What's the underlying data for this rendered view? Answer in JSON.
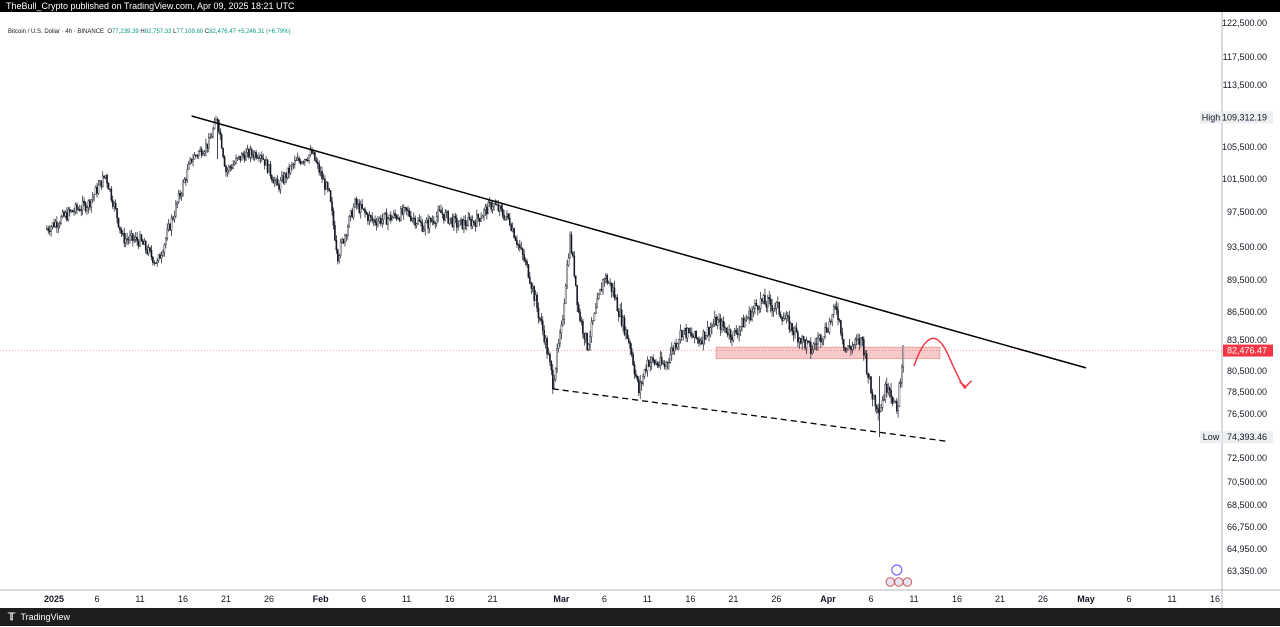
{
  "header": {
    "publisher_line": "TheBull_Crypto published on TradingView.com, Apr 09, 2025 18:21 UTC"
  },
  "legend": {
    "symbol": "Bitcoin / U.S. Dollar · 4h · BINANCE",
    "open_label": "O",
    "open": "77,239.39",
    "high_label": "H",
    "high": "82,757.33",
    "low_label": "L",
    "low": "77,109.60",
    "close_label": "C",
    "close": "82,476.47",
    "change": "+5,246.31 (+6.79%)"
  },
  "footer": {
    "brand": "TradingView"
  },
  "chart_data": {
    "type": "candlestick",
    "symbol": "Bitcoin / U.S. Dollar",
    "interval": "4h",
    "exchange": "BINANCE",
    "y_ticks": [
      122500,
      117500,
      113500,
      105500,
      101500,
      97500,
      93500,
      89500,
      86500,
      83500,
      80500,
      78500,
      76500,
      72500,
      70500,
      68500,
      66750,
      64950,
      63350
    ],
    "y_tick_labels": [
      "122,500.00",
      "117,500.00",
      "113,500.00",
      "105,500.00",
      "101,500.00",
      "97,500.00",
      "93,500.00",
      "89,500.00",
      "86,500.00",
      "83,500.00",
      "80,500.00",
      "78,500.00",
      "76,500.00",
      "72,500.00",
      "70,500.00",
      "68,500.00",
      "66,750.00",
      "64,950.00",
      "63,350.00"
    ],
    "x_tick_labels": [
      "2025",
      "6",
      "11",
      "16",
      "21",
      "26",
      "Feb",
      "6",
      "11",
      "16",
      "21",
      "Mar",
      "6",
      "11",
      "16",
      "21",
      "26",
      "Apr",
      "6",
      "11",
      "16",
      "21",
      "26",
      "May",
      "6",
      "11",
      "16"
    ],
    "x_tick_dates": [
      "2025-01-01",
      "2025-01-06",
      "2025-01-11",
      "2025-01-16",
      "2025-01-21",
      "2025-01-26",
      "2025-02-01",
      "2025-02-06",
      "2025-02-11",
      "2025-02-16",
      "2025-02-21",
      "2025-03-01",
      "2025-03-06",
      "2025-03-11",
      "2025-03-16",
      "2025-03-21",
      "2025-03-26",
      "2025-04-01",
      "2025-04-06",
      "2025-04-11",
      "2025-04-16",
      "2025-04-21",
      "2025-04-26",
      "2025-05-01",
      "2025-05-06",
      "2025-05-11",
      "2025-05-16"
    ],
    "bold_x_labels": [
      "2025",
      "Feb",
      "Mar",
      "Apr",
      "May"
    ],
    "price_path": [
      [
        "2024-12-31",
        95500
      ],
      [
        "2025-01-03",
        97500
      ],
      [
        "2025-01-05",
        98500
      ],
      [
        "2025-01-07",
        102000
      ],
      [
        "2025-01-09",
        94500
      ],
      [
        "2025-01-11",
        94200
      ],
      [
        "2025-01-13",
        91500
      ],
      [
        "2025-01-15",
        97500
      ],
      [
        "2025-01-17",
        104000
      ],
      [
        "2025-01-19",
        106000
      ],
      [
        "2025-01-20",
        109312
      ],
      [
        "2025-01-21",
        102500
      ],
      [
        "2025-01-23",
        104500
      ],
      [
        "2025-01-25",
        104800
      ],
      [
        "2025-01-27",
        100500
      ],
      [
        "2025-01-29",
        103500
      ],
      [
        "2025-01-31",
        104700
      ],
      [
        "2025-02-02",
        99500
      ],
      [
        "2025-02-03",
        92500
      ],
      [
        "2025-02-05",
        98500
      ],
      [
        "2025-02-07",
        96500
      ],
      [
        "2025-02-09",
        96800
      ],
      [
        "2025-02-11",
        97500
      ],
      [
        "2025-02-13",
        95800
      ],
      [
        "2025-02-15",
        97400
      ],
      [
        "2025-02-17",
        96000
      ],
      [
        "2025-02-19",
        96500
      ],
      [
        "2025-02-21",
        98500
      ],
      [
        "2025-02-23",
        96500
      ],
      [
        "2025-02-25",
        91000
      ],
      [
        "2025-02-27",
        84000
      ],
      [
        "2025-02-28",
        79500
      ],
      [
        "2025-03-01",
        84500
      ],
      [
        "2025-03-02",
        94500
      ],
      [
        "2025-03-03",
        86500
      ],
      [
        "2025-03-04",
        83000
      ],
      [
        "2025-03-06",
        90000
      ],
      [
        "2025-03-07",
        88500
      ],
      [
        "2025-03-09",
        83000
      ],
      [
        "2025-03-10",
        78500
      ],
      [
        "2025-03-11",
        81500
      ],
      [
        "2025-03-13",
        81000
      ],
      [
        "2025-03-15",
        84500
      ],
      [
        "2025-03-17",
        83500
      ],
      [
        "2025-03-19",
        85500
      ],
      [
        "2025-03-21",
        84000
      ],
      [
        "2025-03-24",
        87500
      ],
      [
        "2025-03-26",
        87000
      ],
      [
        "2025-03-28",
        84500
      ],
      [
        "2025-03-30",
        82500
      ],
      [
        "2025-04-01",
        85000
      ],
      [
        "2025-04-02",
        87000
      ],
      [
        "2025-04-03",
        82500
      ],
      [
        "2025-04-05",
        83500
      ],
      [
        "2025-04-06",
        78500
      ],
      [
        "2025-04-07",
        77000
      ],
      [
        "2025-04-08",
        79500
      ],
      [
        "2025-04-09",
        76500
      ],
      [
        "2025-04-09T18:00",
        82476
      ]
    ],
    "high": {
      "label": "High",
      "value": 109312.19,
      "value_label": "109,312.19"
    },
    "low": {
      "label": "Low",
      "value": 74393.46,
      "value_label": "74,393.46"
    },
    "last_price": {
      "value": 82476.47,
      "value_label": "82,476.47",
      "color": "#f23645"
    },
    "trendline_upper": {
      "start": [
        "2025-01-17",
        109500
      ],
      "end": [
        "2025-05-01",
        80800
      ],
      "style": "solid",
      "color": "#000000"
    },
    "trendline_lower": {
      "start": [
        "2025-02-28",
        78800
      ],
      "end": [
        "2025-04-15",
        74000
      ],
      "style": "dashed",
      "color": "#000000"
    },
    "zone": {
      "from": "2025-03-19",
      "to": "2025-04-14",
      "bottom": 81700,
      "top": 82800,
      "color": "#f7c9c9"
    },
    "projection": {
      "color": "#f23645",
      "path": [
        [
          "2025-04-11",
          81000
        ],
        [
          "2025-04-13",
          84500
        ],
        [
          "2025-04-15",
          82000
        ],
        [
          "2025-04-17",
          79000
        ]
      ]
    },
    "colors": {
      "up": "#089981",
      "down": "#131722",
      "candle": "#131722",
      "background": "#ffffff"
    },
    "grid": false,
    "ylim": [
      62500,
      124500
    ]
  }
}
